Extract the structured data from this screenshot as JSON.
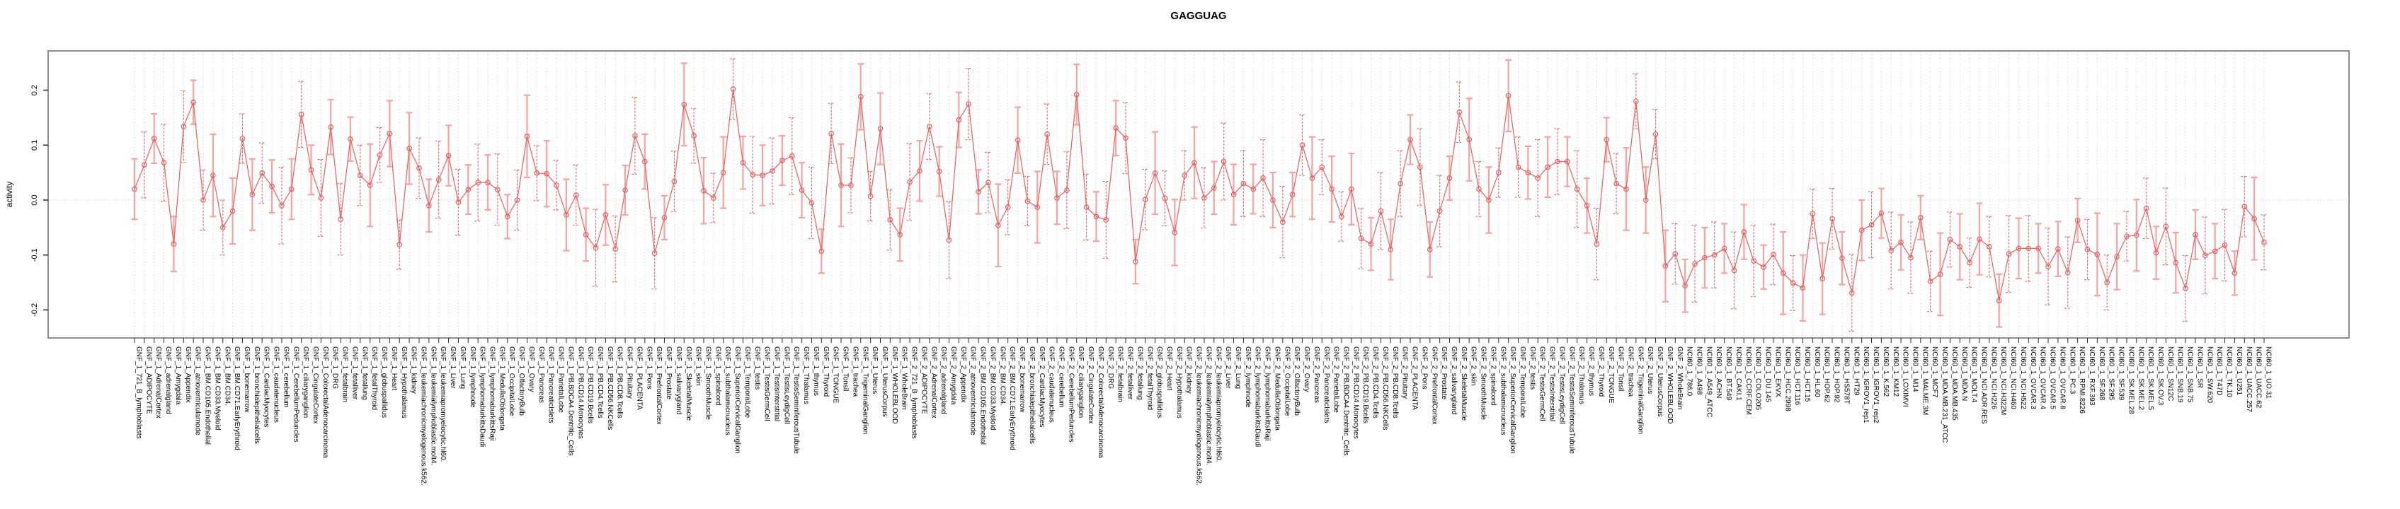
{
  "chart_data": {
    "type": "line",
    "title": "GAGGUAG",
    "ylabel": "activity",
    "xlabel": "",
    "ylim": [
      -0.253,
      0.272
    ],
    "yticks": [
      0.2,
      0.1,
      0.0,
      -0.1,
      -0.2
    ],
    "grid": "dotted vertical gridline at every category; dotted horizontal line at y=0",
    "legend": "none",
    "marker": "open-circle with error bars, connected by line segments",
    "colors": {
      "point": "#ee5a5a",
      "line": "#ee5a5a",
      "errorbar_light": "#f9a2a2",
      "errorbar_dark": "#ee5a5a",
      "grid": "#dadada",
      "zero_line": "#d6d6d6",
      "box": "#8e8e8e",
      "tick": "#2b2b2b"
    },
    "categories": [
      "GNF_1_721_B_lymphoblasts",
      "GNF_1_ADIPOCYTE",
      "GNF_1_AdrenalCortex",
      "GNF_1_adrenalgland",
      "GNF_1_Amygdala",
      "GNF_1_Appendix",
      "GNF_1_atrioventricularnode",
      "GNF_1_BM.CD105.Endothelial",
      "GNF_1_BM.CD33.Myeloid",
      "GNF_1_BM.CD34.",
      "GNF_1_BM.CD71.EarlyErythroid",
      "GNF_1_bonemarrow",
      "GNF_1_bronchialepithelialcells",
      "GNF_1_CardiacMyocytes",
      "GNF_1_caudatenucleus",
      "GNF_1_cerebellum",
      "GNF_1_CerebellumPeduncles",
      "GNF_1_ciliaryganglion",
      "GNF_1_CingulateCortex",
      "GNF_1_ColorectalAdenocarcinoma",
      "GNF_1_DRG",
      "GNF_1_fetalbrain",
      "GNF_1_fetalliver",
      "GNF_1_fetallung",
      "GNF_1_fetalThyroid",
      "GNF_1_globuspallidus",
      "GNF_1_Heart",
      "GNF_1_Hypothalamus",
      "GNF_1_kidney",
      "GNF_1_leukemiachronicmyelogenous.k562.",
      "GNF_1_leukemialymphoblastic.molt4.",
      "GNF_1_leukemiapromyelocytic.hl60.",
      "GNF_1_Liver",
      "GNF_1_Lung",
      "GNF_1_lymphnode",
      "GNF_1_lymphomaburkittsDaudi",
      "GNF_1_lymphomaburkittsRaji",
      "GNF_1_MedullaOblongata",
      "GNF_1_OccipitalLobe",
      "GNF_1_OlfactoryBulb",
      "GNF_1_Ovary",
      "GNF_1_Pancreas",
      "GNF_1_PancreaticIslets",
      "GNF_1_ParietalLobe",
      "GNF_1_PB.BDCA4.Dentritic_Cells",
      "GNF_1_PB.CD14.Monocytes",
      "GNF_1_PB.CD19.Bcells",
      "GNF_1_PB.CD4.Tcells",
      "GNF_1_PB.CD56.NKCells",
      "GNF_1_PB.CD8.Tcells",
      "GNF_1_Pituitary",
      "GNF_1_PLACENTA",
      "GNF_1_Pons",
      "GNF_1_PrefrontalCortex",
      "GNF_1_Prostate",
      "GNF_1_salivarygland",
      "GNF_1_SkeletalMuscle",
      "GNF_1_skin",
      "GNF_1_SmoothMuscle",
      "GNF_1_spinalcord",
      "GNF_1_subthalamicnucleus",
      "GNF_1_SuperiorCervicalGanglion",
      "GNF_1_TemporalLobe",
      "GNF_1_testis",
      "GNF_1_TestisGermCell",
      "GNF_1_TestisInterstitial",
      "GNF_1_TestisLeydigCell",
      "GNF_1_TestisSeminiferousTubule",
      "GNF_1_Thalamus",
      "GNF_1_thymus",
      "GNF_1_Thyroid",
      "GNF_1_TONGUE",
      "GNF_1_Tonsil",
      "GNF_1_trachea",
      "GNF_1_TrigeminalGanglion",
      "GNF_1_Uterus",
      "GNF_1_UterusCorpus",
      "GNF_1_WHOLEBLOOD",
      "GNF_1_WholeBrain",
      "GNF_2_721_B_lymphoblasts",
      "GNF_2_ADIPOCYTE",
      "GNF_2_AdrenalCortex",
      "GNF_2_adrenalgland",
      "GNF_2_Amygdala",
      "GNF_2_Appendix",
      "GNF_2_atrioventricularnode",
      "GNF_2_BM.CD105.Endothelial",
      "GNF_2_BM.CD33.Myeloid",
      "GNF_2_BM.CD34.",
      "GNF_2_BM.CD71.EarlyErythroid",
      "GNF_2_bonemarrow",
      "GNF_2_bronchialepithelialcells",
      "GNF_2_CardiacMyocytes",
      "GNF_2_caudatenucleus",
      "GNF_2_cerebellum",
      "GNF_2_CerebellumPeduncles",
      "GNF_2_ciliaryganglion",
      "GNF_2_CingulateCortex",
      "GNF_2_ColorectalAdenocarcinoma",
      "GNF_2_DRG",
      "GNF_2_fetalbrain",
      "GNF_2_fetalliver",
      "GNF_2_fetallung",
      "GNF_2_fetalThyroid",
      "GNF_2_globuspallidus",
      "GNF_2_Heart",
      "GNF_2_Hypothalamus",
      "GNF_2_kidney",
      "GNF_2_leukemiachronicmyelogenous.k562.",
      "GNF_2_leukemialymphoblastic.molt4.",
      "GNF_2_leukemiapromyelocytic.hl60.",
      "GNF_2_Liver",
      "GNF_2_Lung",
      "GNF_2_lymphnode",
      "GNF_2_lymphomaburkittsDaudi",
      "GNF_2_lymphomaburkittsRaji",
      "GNF_2_MedullaOblongata",
      "GNF_2_OccipitalLobe",
      "GNF_2_OlfactoryBulb",
      "GNF_2_Ovary",
      "GNF_2_Pancreas",
      "GNF_2_PancreaticIslets",
      "GNF_2_ParietalLobe",
      "GNF_2_PB.BDCA4.Dentritic_Cells",
      "GNF_2_PB.CD14.Monocytes",
      "GNF_2_PB.CD19.Bcells",
      "GNF_2_PB.CD4.Tcells",
      "GNF_2_PB.CD56.NKCells",
      "GNF_2_PB.CD8.Tcells",
      "GNF_2_Pituitary",
      "GNF_2_PLACENTA",
      "GNF_2_Pons",
      "GNF_2_PrefrontalCortex",
      "GNF_2_Prostate",
      "GNF_2_salivarygland",
      "GNF_2_SkeletalMuscle",
      "GNF_2_skin",
      "GNF_2_SmoothMuscle",
      "GNF_2_spinalcord",
      "GNF_2_subthalamicnucleus",
      "GNF_2_SuperiorCervicalGanglion",
      "GNF_2_TemporalLobe",
      "GNF_2_testis",
      "GNF_2_TestisGermCell",
      "GNF_2_TestisInterstitial",
      "GNF_2_TestisLeydigCell",
      "GNF_2_TestisSeminiferousTubule",
      "GNF_2_Thalamus",
      "GNF_2_thymus",
      "GNF_2_Thyroid",
      "GNF_2_TONGUE",
      "GNF_2_Tonsil",
      "GNF_2_trachea",
      "GNF_2_TrigeminalGanglion",
      "GNF_2_Uterus",
      "GNF_2_UterusCorpus",
      "GNF_2_WHOLEBLOOD",
      "GNF_2_WholeBrain",
      "NCI60_1_786.0",
      "NCI60_1_A498",
      "NCI60_1_A549_ATCC",
      "NCI60_1_ACHN",
      "NCI60_1_BT.549",
      "NCI60_1_CAKI.1",
      "NCI60_1_CCRF.CEM",
      "NCI60_1_COLO205",
      "NCI60_1_DU.145",
      "NCI60_1_EKVX",
      "NCI60_1_HCC.2998",
      "NCI60_1_HCT.116",
      "NCI60_1_HCT.15",
      "NCI60_1_HL.60",
      "NCI60_1_HOP.62",
      "NCI60_1_HOP.92",
      "NCI60_1_HS578T",
      "NCI60_1_HT29",
      "NCI60_1_IGROV1_rep1",
      "NCI60_1_IGROV1_rep2",
      "NCI60_1_K.562",
      "NCI60_1_KM12",
      "NCI60_1_LOXIMVI",
      "NCI60_1_M14",
      "NCI60_1_MALME.3M",
      "NCI60_1_MCF7",
      "NCI60_1_MDA.MB.231_ATCC",
      "NCI60_1_MDA.MB.435",
      "NCI60_1_MDA.N",
      "NCI60_1_MOLT.4",
      "NCI60_1_NCI.ADR.RES",
      "NCI60_1_NCI.H226",
      "NCI60_1_NCI.H322M",
      "NCI60_1_NCI.H460",
      "NCI60_1_NCI.H522",
      "NCI60_1_OVCAR.3",
      "NCI60_1_OVCAR.4",
      "NCI60_1_OVCAR.5",
      "NCI60_1_OVCAR.8",
      "NCI60_1_PC.3",
      "NCI60_1_RPMI.8226",
      "NCI60_1_RXF.393",
      "NCI60_1_SF.268",
      "NCI60_1_SF.295",
      "NCI60_1_SF.539",
      "NCI60_1_SK.MEL.28",
      "NCI60_1_SK.MEL.2",
      "NCI60_1_SK.MEL.5",
      "NCI60_1_SK.OV.3",
      "NCI60_1_SN12C",
      "NCI60_1_SNB.19",
      "NCI60_1_SNB.75",
      "NCI60_1_SR",
      "NCI60_1_SW.620",
      "NCI60_1_T47D",
      "NCI60_1_TK.10",
      "NCI60_1_U251",
      "NCI60_1_UACC.257",
      "NCI60_1_UACC.62",
      "NCI60_1_UO.31"
    ],
    "series": [
      {
        "name": "activity",
        "values": [
          0.02,
          0.064,
          0.112,
          0.068,
          -0.08,
          0.134,
          0.178,
          0.0,
          0.045,
          -0.05,
          -0.02,
          0.112,
          0.01,
          0.049,
          0.025,
          -0.01,
          0.02,
          0.156,
          0.055,
          0.004,
          0.133,
          -0.035,
          0.111,
          0.045,
          0.027,
          0.082,
          0.121,
          -0.081,
          0.094,
          0.058,
          -0.01,
          0.037,
          0.081,
          -0.004,
          0.019,
          0.032,
          0.032,
          0.019,
          -0.03,
          0.0,
          0.116,
          0.049,
          0.048,
          0.027,
          -0.027,
          0.009,
          -0.063,
          -0.087,
          -0.027,
          -0.089,
          0.018,
          0.117,
          0.07,
          -0.097,
          -0.032,
          0.034,
          0.174,
          0.117,
          0.017,
          0.004,
          0.05,
          0.202,
          0.068,
          0.046,
          0.045,
          0.053,
          0.072,
          0.08,
          0.018,
          -0.005,
          -0.093,
          0.121,
          0.027,
          0.027,
          0.188,
          0.007,
          0.13,
          -0.036,
          -0.063,
          0.033,
          0.053,
          0.134,
          0.052,
          -0.073,
          0.146,
          0.175,
          0.015,
          0.032,
          -0.046,
          -0.013,
          0.109,
          -0.002,
          -0.013,
          0.12,
          0.004,
          0.018,
          0.192,
          -0.013,
          -0.03,
          -0.036,
          0.131,
          0.113,
          -0.112,
          0.001,
          0.049,
          0.003,
          -0.059,
          0.045,
          0.068,
          0.004,
          0.022,
          0.07,
          0.01,
          0.03,
          0.02,
          0.04,
          0.0,
          -0.04,
          0.01,
          0.1,
          0.04,
          0.06,
          0.02,
          -0.03,
          0.02,
          -0.07,
          -0.08,
          -0.02,
          -0.09,
          0.03,
          0.11,
          0.06,
          -0.09,
          -0.02,
          0.04,
          0.16,
          0.11,
          0.02,
          0.0,
          0.05,
          0.19,
          0.06,
          0.05,
          0.04,
          0.06,
          0.07,
          0.07,
          0.02,
          -0.01,
          -0.08,
          0.11,
          0.03,
          0.02,
          0.18,
          0.0,
          0.12,
          -0.12,
          -0.098,
          -0.156,
          -0.116,
          -0.105,
          -0.1,
          -0.088,
          -0.128,
          -0.058,
          -0.111,
          -0.122,
          -0.099,
          -0.133,
          -0.151,
          -0.16,
          -0.025,
          -0.143,
          -0.034,
          -0.106,
          -0.169,
          -0.055,
          -0.045,
          -0.024,
          -0.092,
          -0.077,
          -0.105,
          -0.032,
          -0.148,
          -0.135,
          -0.072,
          -0.085,
          -0.114,
          -0.071,
          -0.085,
          -0.183,
          -0.098,
          -0.088,
          -0.088,
          -0.088,
          -0.121,
          -0.089,
          -0.132,
          -0.037,
          -0.09,
          -0.099,
          -0.15,
          -0.103,
          -0.066,
          -0.064,
          -0.015,
          -0.096,
          -0.048,
          -0.114,
          -0.161,
          -0.063,
          -0.101,
          -0.093,
          -0.082,
          -0.133,
          -0.012,
          -0.034,
          -0.077
        ],
        "errors": [
          0.055,
          0.06,
          0.045,
          0.07,
          0.05,
          0.065,
          0.04,
          0.055,
          0.075,
          0.05,
          0.06,
          0.045,
          0.065,
          0.055,
          0.048,
          0.07,
          0.055,
          0.06,
          0.045,
          0.07,
          0.05,
          0.065,
          0.04,
          0.055,
          0.075,
          0.05,
          0.06,
          0.045,
          0.065,
          0.055,
          0.048,
          0.07,
          0.055,
          0.06,
          0.045,
          0.07,
          0.05,
          0.065,
          0.04,
          0.055,
          0.075,
          0.05,
          0.06,
          0.045,
          0.065,
          0.055,
          0.048,
          0.07,
          0.055,
          0.06,
          0.045,
          0.07,
          0.05,
          0.065,
          0.04,
          0.055,
          0.075,
          0.05,
          0.06,
          0.045,
          0.065,
          0.055,
          0.048,
          0.07,
          0.055,
          0.06,
          0.045,
          0.07,
          0.05,
          0.065,
          0.04,
          0.055,
          0.075,
          0.05,
          0.06,
          0.045,
          0.065,
          0.055,
          0.048,
          0.07,
          0.055,
          0.06,
          0.045,
          0.07,
          0.05,
          0.065,
          0.04,
          0.055,
          0.075,
          0.05,
          0.06,
          0.045,
          0.065,
          0.055,
          0.048,
          0.07,
          0.055,
          0.06,
          0.045,
          0.07,
          0.05,
          0.065,
          0.04,
          0.055,
          0.075,
          0.05,
          0.06,
          0.045,
          0.065,
          0.055,
          0.048,
          0.07,
          0.055,
          0.06,
          0.045,
          0.07,
          0.05,
          0.065,
          0.04,
          0.055,
          0.075,
          0.05,
          0.06,
          0.045,
          0.065,
          0.055,
          0.048,
          0.07,
          0.055,
          0.06,
          0.045,
          0.07,
          0.05,
          0.065,
          0.04,
          0.055,
          0.075,
          0.05,
          0.06,
          0.045,
          0.065,
          0.055,
          0.048,
          0.07,
          0.055,
          0.06,
          0.045,
          0.07,
          0.05,
          0.065,
          0.04,
          0.055,
          0.075,
          0.05,
          0.06,
          0.045,
          0.065,
          0.055,
          0.048,
          0.07,
          0.055,
          0.06,
          0.045,
          0.07,
          0.05,
          0.065,
          0.04,
          0.055,
          0.075,
          0.05,
          0.06,
          0.045,
          0.065,
          0.055,
          0.048,
          0.07,
          0.055,
          0.06,
          0.045,
          0.07,
          0.05,
          0.065,
          0.04,
          0.055,
          0.075,
          0.05,
          0.06,
          0.045,
          0.065,
          0.055,
          0.048,
          0.07,
          0.055,
          0.06,
          0.045,
          0.07,
          0.05,
          0.065,
          0.04,
          0.055,
          0.075,
          0.05,
          0.06,
          0.045,
          0.065,
          0.055,
          0.048,
          0.07,
          0.055,
          0.06,
          0.045,
          0.07,
          0.05,
          0.065,
          0.04,
          0.055,
          0.075,
          0.05
        ]
      }
    ]
  }
}
